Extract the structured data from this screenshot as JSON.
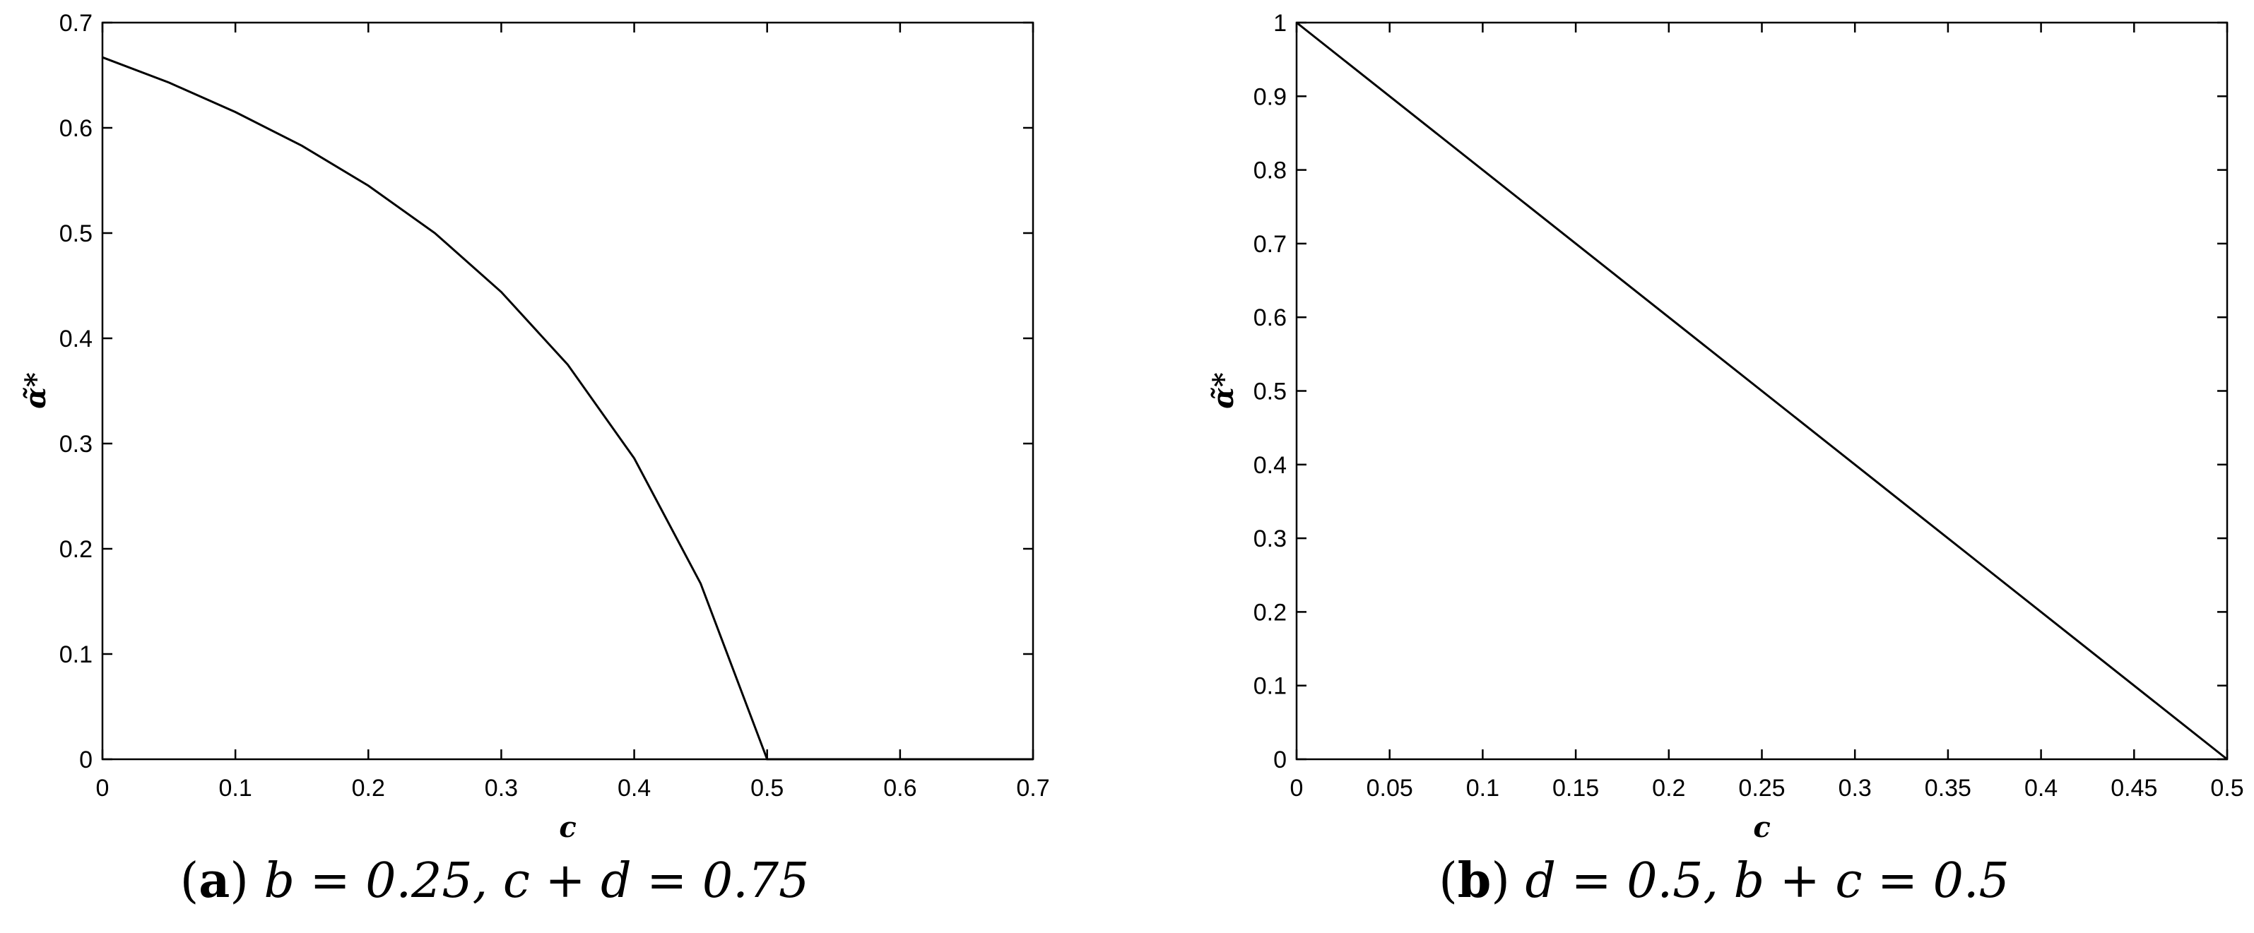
{
  "chart_data": [
    {
      "type": "line",
      "panel": "a",
      "caption": {
        "letter": "a",
        "text": "b = 0.25, c + d = 0.75"
      },
      "xlabel": "c",
      "ylabel": "α̃*",
      "xlim": [
        0,
        0.7
      ],
      "ylim": [
        0,
        0.7
      ],
      "xticks": [
        "0",
        "0.1",
        "0.2",
        "0.3",
        "0.4",
        "0.5",
        "0.6",
        "0.7"
      ],
      "yticks": [
        "0",
        "0.1",
        "0.2",
        "0.3",
        "0.4",
        "0.5",
        "0.6",
        "0.7"
      ],
      "grid": false,
      "x": [
        0,
        0.05,
        0.1,
        0.15,
        0.2,
        0.25,
        0.3,
        0.35,
        0.4,
        0.45,
        0.5,
        0.55,
        0.6,
        0.65,
        0.7
      ],
      "y": [
        0.667,
        0.643,
        0.615,
        0.583,
        0.545,
        0.5,
        0.444,
        0.375,
        0.286,
        0.167,
        0,
        0,
        0,
        0,
        0
      ]
    },
    {
      "type": "line",
      "panel": "b",
      "caption": {
        "letter": "b",
        "text": "d = 0.5, b + c = 0.5"
      },
      "xlabel": "c",
      "ylabel": "α̃*",
      "xlim": [
        0,
        0.5
      ],
      "ylim": [
        0,
        1
      ],
      "xticks": [
        "0",
        "0.05",
        "0.1",
        "0.15",
        "0.2",
        "0.25",
        "0.3",
        "0.35",
        "0.4",
        "0.45",
        "0.5"
      ],
      "yticks": [
        "0",
        "0.1",
        "0.2",
        "0.3",
        "0.4",
        "0.5",
        "0.6",
        "0.7",
        "0.8",
        "0.9",
        "1"
      ],
      "grid": false,
      "x": [
        0,
        0.5
      ],
      "y": [
        1,
        0
      ]
    }
  ]
}
